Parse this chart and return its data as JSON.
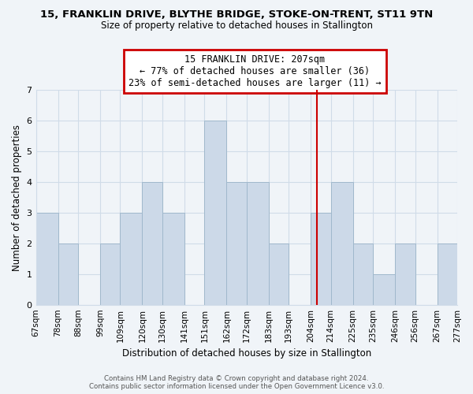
{
  "title_line1": "15, FRANKLIN DRIVE, BLYTHE BRIDGE, STOKE-ON-TRENT, ST11 9TN",
  "title_line2": "Size of property relative to detached houses in Stallington",
  "xlabel": "Distribution of detached houses by size in Stallington",
  "ylabel": "Number of detached properties",
  "bar_color": "#ccd9e8",
  "bar_edge_color": "#a0b8cc",
  "bins": [
    "67sqm",
    "78sqm",
    "88sqm",
    "99sqm",
    "109sqm",
    "120sqm",
    "130sqm",
    "141sqm",
    "151sqm",
    "162sqm",
    "172sqm",
    "183sqm",
    "193sqm",
    "204sqm",
    "214sqm",
    "225sqm",
    "235sqm",
    "246sqm",
    "256sqm",
    "267sqm",
    "277sqm"
  ],
  "bin_edges": [
    67,
    78,
    88,
    99,
    109,
    120,
    130,
    141,
    151,
    162,
    172,
    183,
    193,
    204,
    214,
    225,
    235,
    246,
    256,
    267,
    277
  ],
  "counts": [
    3,
    2,
    0,
    2,
    3,
    4,
    3,
    0,
    6,
    4,
    4,
    2,
    0,
    3,
    4,
    2,
    1,
    2,
    0,
    2
  ],
  "ylim": [
    0,
    7
  ],
  "yticks": [
    0,
    1,
    2,
    3,
    4,
    5,
    6,
    7
  ],
  "property_size": 207,
  "annotation_box_text": "15 FRANKLIN DRIVE: 207sqm\n← 77% of detached houses are smaller (36)\n23% of semi-detached houses are larger (11) →",
  "annotation_box_color": "#ffffff",
  "annotation_box_edgecolor": "#cc0000",
  "vline_color": "#cc0000",
  "footer_text": "Contains HM Land Registry data © Crown copyright and database right 2024.\nContains public sector information licensed under the Open Government Licence v3.0.",
  "background_color": "#f0f4f8",
  "grid_color": "#d0dce8"
}
